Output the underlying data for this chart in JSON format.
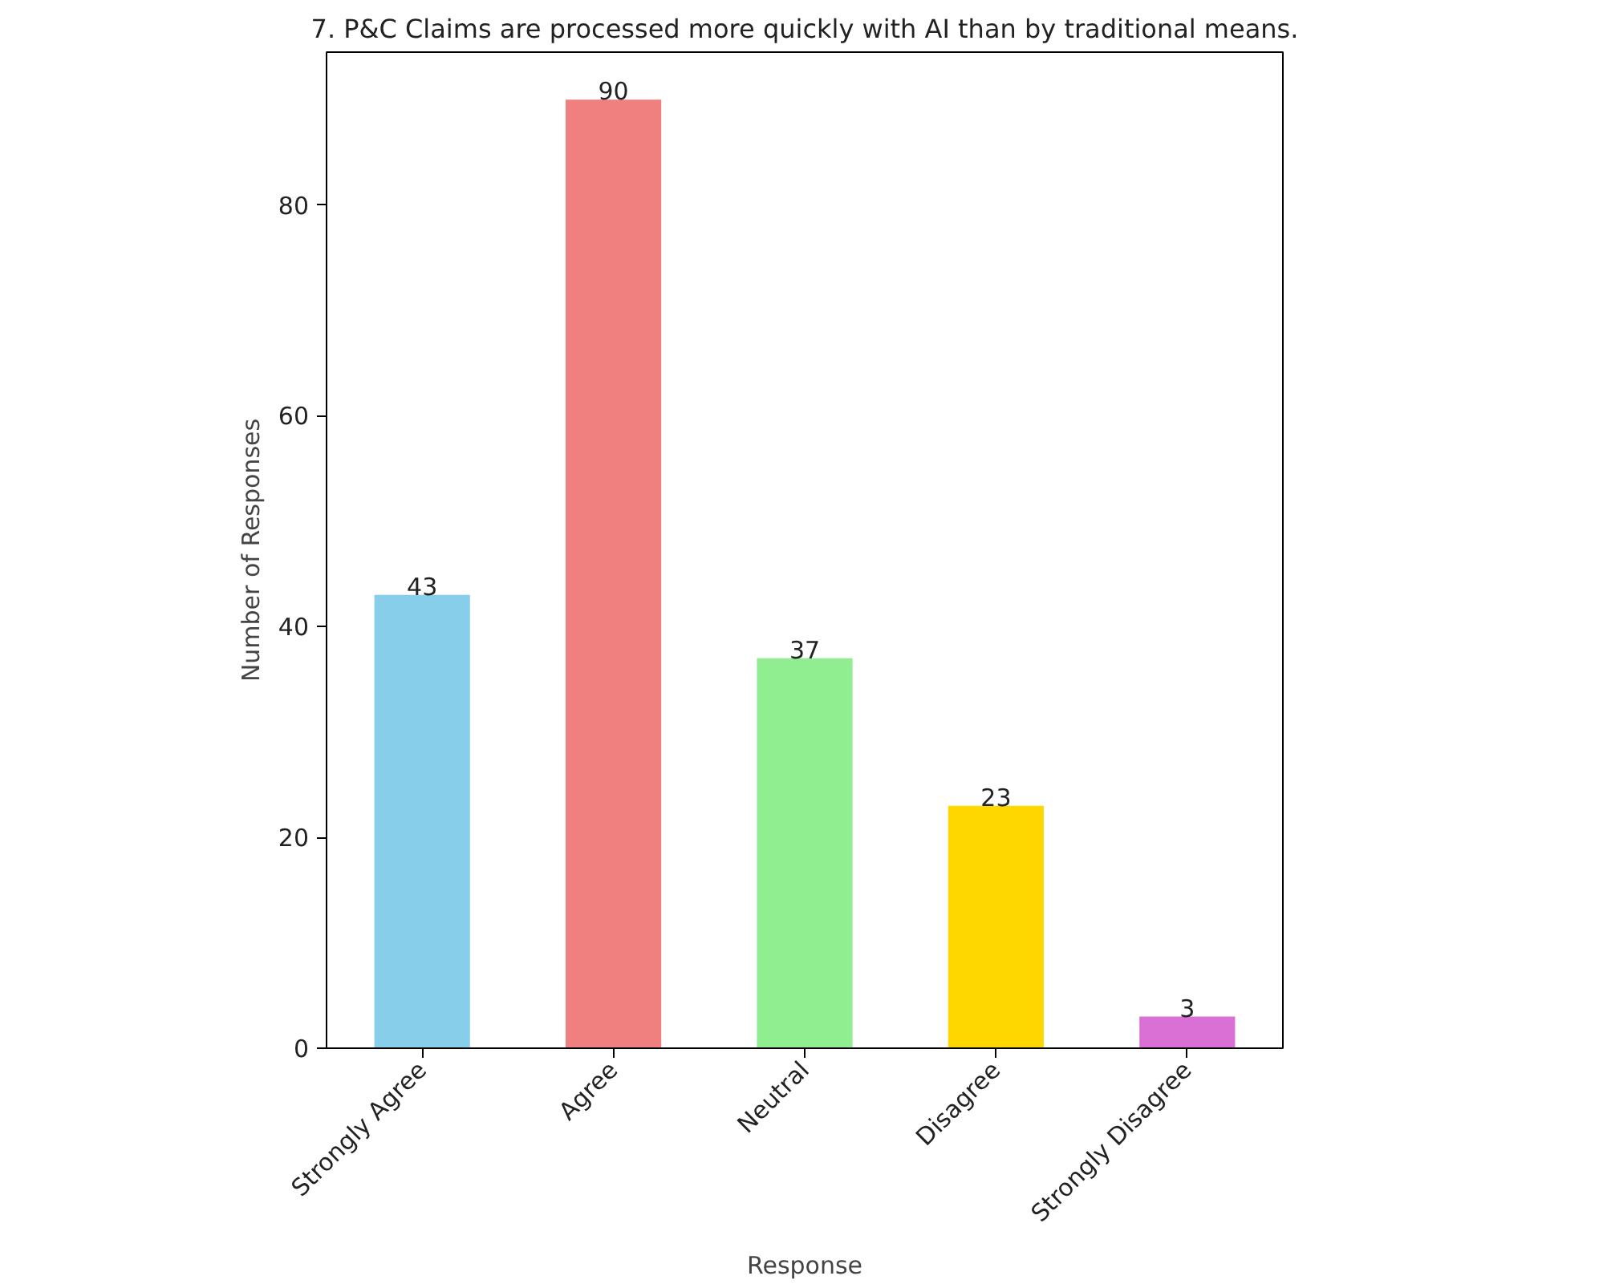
{
  "chart_data": {
    "type": "bar",
    "title": "7. P&C Claims are processed more quickly with AI than by traditional means.",
    "xlabel": "Response",
    "ylabel": "Number of Responses",
    "categories": [
      "Strongly Agree",
      "Agree",
      "Neutral",
      "Disagree",
      "Strongly Disagree"
    ],
    "values": [
      43,
      90,
      37,
      23,
      3
    ],
    "colors": [
      "#87ceeb",
      "#f08080",
      "#90ee90",
      "#ffd700",
      "#da70d6"
    ],
    "ylim": [
      0,
      94.5
    ],
    "yticks": [
      0,
      20,
      40,
      60,
      80
    ],
    "data_labels": true,
    "grid": false
  }
}
